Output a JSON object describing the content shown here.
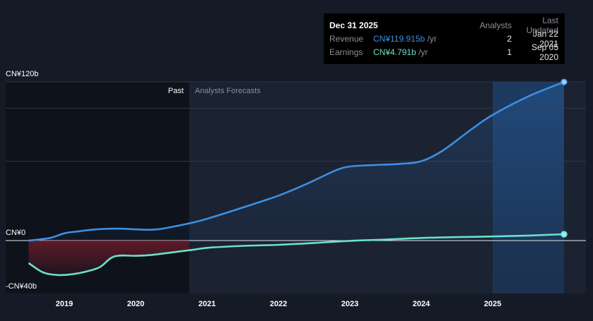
{
  "chart_data": {
    "type": "line",
    "y_axis": {
      "range": [
        -40,
        120
      ],
      "tick_labels": [
        {
          "value": 120,
          "label": "CN¥120b"
        },
        {
          "value": 0,
          "label": "CN¥0"
        },
        {
          "value": -40,
          "label": "-CN¥40b"
        }
      ],
      "gridlines": [
        120,
        100,
        60,
        0
      ]
    },
    "x_axis": {
      "range": [
        2018.55,
        2026.3
      ],
      "ticks": [
        "2019",
        "2020",
        "2021",
        "2022",
        "2023",
        "2024",
        "2025"
      ]
    },
    "regions": {
      "past_label": "Past",
      "forecast_label": "Analysts Forecasts",
      "divider_x": 2020.75,
      "highlight_from_x": 2025.0,
      "highlight_to_x": 2026.0
    },
    "series": [
      {
        "name": "Revenue",
        "color": "#3d8fe0",
        "points": [
          [
            2018.5,
            0
          ],
          [
            2018.8,
            2
          ],
          [
            2019.0,
            5.5
          ],
          [
            2019.2,
            7
          ],
          [
            2019.45,
            8.5
          ],
          [
            2019.75,
            9
          ],
          [
            2020.0,
            8.5
          ],
          [
            2020.3,
            8.5
          ],
          [
            2020.75,
            13
          ],
          [
            2021.0,
            16.5
          ],
          [
            2021.5,
            25
          ],
          [
            2022.0,
            34
          ],
          [
            2022.4,
            43
          ],
          [
            2022.8,
            53
          ],
          [
            2023.0,
            56
          ],
          [
            2023.3,
            57
          ],
          [
            2023.7,
            58
          ],
          [
            2024.0,
            60
          ],
          [
            2024.3,
            68
          ],
          [
            2024.7,
            84
          ],
          [
            2025.0,
            95
          ],
          [
            2025.5,
            109
          ],
          [
            2026.0,
            119.9
          ]
        ]
      },
      {
        "name": "Earnings",
        "color": "#6be0c8",
        "points": [
          [
            2018.5,
            -17
          ],
          [
            2018.7,
            -24
          ],
          [
            2018.9,
            -26
          ],
          [
            2019.1,
            -25.5
          ],
          [
            2019.3,
            -23.5
          ],
          [
            2019.5,
            -20
          ],
          [
            2019.7,
            -12
          ],
          [
            2020.0,
            -11.5
          ],
          [
            2020.2,
            -11
          ],
          [
            2020.5,
            -9
          ],
          [
            2020.8,
            -7
          ],
          [
            2021.0,
            -5.5
          ],
          [
            2021.5,
            -4
          ],
          [
            2022.0,
            -3.2
          ],
          [
            2022.5,
            -1.8
          ],
          [
            2023.0,
            -0.2
          ],
          [
            2023.5,
            0.8
          ],
          [
            2024.0,
            2
          ],
          [
            2024.5,
            2.6
          ],
          [
            2025.0,
            3.1
          ],
          [
            2025.5,
            3.8
          ],
          [
            2026.0,
            4.791
          ]
        ]
      }
    ],
    "tooltip": {
      "date": "Dec 31 2025",
      "col_analysts": "Analysts",
      "col_updated": "Last Updated",
      "rows": [
        {
          "label": "Revenue",
          "value": "CN¥119.915b",
          "unit": "/yr",
          "analysts": "2",
          "updated": "Jan 22 2021",
          "color": "#3d8fe0"
        },
        {
          "label": "Earnings",
          "value": "CN¥4.791b",
          "unit": "/yr",
          "analysts": "1",
          "updated": "Sep 05 2020",
          "color": "#6be0c8"
        }
      ]
    }
  }
}
